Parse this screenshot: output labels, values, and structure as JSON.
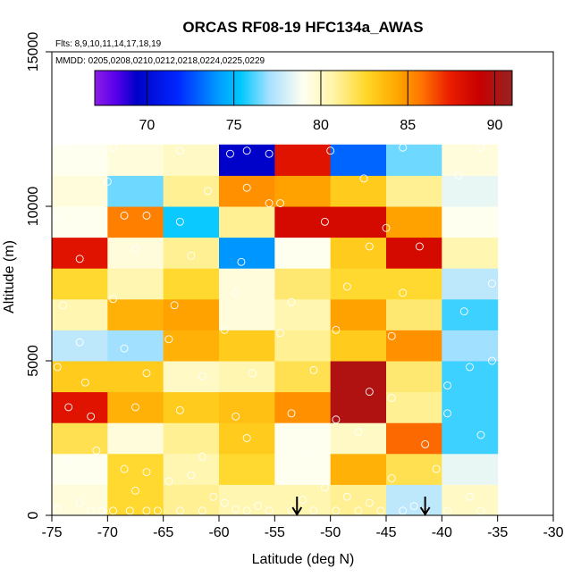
{
  "chart_data": {
    "type": "heatmap",
    "title": "ORCAS RF08-19 HFC134a_AWAS",
    "flights_note": "Flts: 8,9,10,11,14,17,18,19",
    "dates_note": "MMDD: 0205,0208,0210,0212,0218,0224,0225,0229",
    "xlabel": "Latitude (deg N)",
    "ylabel": "Altitude (m)",
    "xlim": [
      -75,
      -30
    ],
    "ylim": [
      0,
      15000
    ],
    "x_ticks": [
      -75,
      -70,
      -65,
      -60,
      -55,
      -50,
      -45,
      -40,
      -35,
      -30
    ],
    "x_tick_labels": [
      "-75",
      "-70",
      "-65",
      "-60",
      "-55",
      "-50",
      "-45",
      "-40",
      "-35",
      "-30"
    ],
    "y_ticks": [
      0,
      5000,
      10000,
      15000
    ],
    "y_tick_labels": [
      "0",
      "5000",
      "10000",
      "15000"
    ],
    "colorbar": {
      "range": [
        67,
        91
      ],
      "ticks": [
        70,
        75,
        80,
        85,
        90
      ],
      "tick_labels": [
        "70",
        "75",
        "80",
        "85",
        "90"
      ]
    },
    "lat_bins": [
      -75,
      -70,
      -65,
      -60,
      -55,
      -50,
      -45,
      -40,
      -35
    ],
    "alt_bins": [
      0,
      1000,
      2000,
      3000,
      4000,
      5000,
      6000,
      7000,
      8000,
      9000,
      10000,
      11000,
      12000
    ],
    "grid_values": [
      [
        79.5,
        82.5,
        81.0,
        80.5,
        80.5,
        81.0,
        77.5,
        80.0
      ],
      [
        79.0,
        82.5,
        80.5,
        82.5,
        79.0,
        84.0,
        82.0,
        78.5
      ],
      [
        82.0,
        79.5,
        81.0,
        83.0,
        79.0,
        80.0,
        86.0,
        76.0
      ],
      [
        88.0,
        84.0,
        83.0,
        83.5,
        85.0,
        90.0,
        81.0,
        76.0
      ],
      [
        83.0,
        83.0,
        80.0,
        80.5,
        82.0,
        90.0,
        81.5,
        76.0
      ],
      [
        77.5,
        77.0,
        84.0,
        83.0,
        81.0,
        83.0,
        85.0,
        77.0
      ],
      [
        80.5,
        84.0,
        84.5,
        79.5,
        80.5,
        84.5,
        81.5,
        76.0
      ],
      [
        82.5,
        80.5,
        82.5,
        79.5,
        81.5,
        82.5,
        82.5,
        77.5
      ],
      [
        88.0,
        79.5,
        81.0,
        74.0,
        79.0,
        83.0,
        88.5,
        80.5
      ],
      [
        79.0,
        85.5,
        75.5,
        81.0,
        88.5,
        88.5,
        84.5,
        79.0
      ],
      [
        79.5,
        76.5,
        81.0,
        85.0,
        84.5,
        83.0,
        81.0,
        78.5
      ],
      [
        79.0,
        79.5,
        80.0,
        69.5,
        88.0,
        73.0,
        76.5,
        79.5
      ]
    ],
    "samples": [
      {
        "lat": -74.5,
        "alt": 200
      },
      {
        "lat": -72.5,
        "alt": 400
      },
      {
        "lat": -71.5,
        "alt": 150
      },
      {
        "lat": -70.5,
        "alt": 150
      },
      {
        "lat": -69.5,
        "alt": 150
      },
      {
        "lat": -68.0,
        "alt": 150
      },
      {
        "lat": -67.5,
        "alt": 800
      },
      {
        "lat": -66.5,
        "alt": 150
      },
      {
        "lat": -65.5,
        "alt": 150
      },
      {
        "lat": -64.5,
        "alt": 1100
      },
      {
        "lat": -63.5,
        "alt": 150
      },
      {
        "lat": -62.5,
        "alt": 1300
      },
      {
        "lat": -61.5,
        "alt": 150
      },
      {
        "lat": -60.5,
        "alt": 600
      },
      {
        "lat": -59.5,
        "alt": 400
      },
      {
        "lat": -58.5,
        "alt": 200
      },
      {
        "lat": -57.5,
        "alt": 150
      },
      {
        "lat": -56.5,
        "alt": 300
      },
      {
        "lat": -55.5,
        "alt": 150
      },
      {
        "lat": -54.5,
        "alt": 1200
      },
      {
        "lat": -53.5,
        "alt": 150
      },
      {
        "lat": -52.5,
        "alt": 500
      },
      {
        "lat": -51.5,
        "alt": 150
      },
      {
        "lat": -50.5,
        "alt": 900
      },
      {
        "lat": -49.5,
        "alt": 150
      },
      {
        "lat": -48.5,
        "alt": 600
      },
      {
        "lat": -47.5,
        "alt": 150
      },
      {
        "lat": -46.5,
        "alt": 400
      },
      {
        "lat": -45.5,
        "alt": 150
      },
      {
        "lat": -44.5,
        "alt": 1200
      },
      {
        "lat": -43.5,
        "alt": 150
      },
      {
        "lat": -42.5,
        "alt": 300
      },
      {
        "lat": -41.5,
        "alt": 150
      },
      {
        "lat": -40.5,
        "alt": 1500
      },
      {
        "lat": -39.5,
        "alt": 150
      },
      {
        "lat": -37.5,
        "alt": 600
      },
      {
        "lat": -36.5,
        "alt": 150
      },
      {
        "lat": -73.5,
        "alt": 1800
      },
      {
        "lat": -71.0,
        "alt": 2100
      },
      {
        "lat": -68.5,
        "alt": 1500
      },
      {
        "lat": -66.5,
        "alt": 1400
      },
      {
        "lat": -61.5,
        "alt": 1900
      },
      {
        "lat": -57.5,
        "alt": 2500
      },
      {
        "lat": -52.5,
        "alt": 2100
      },
      {
        "lat": -47.5,
        "alt": 2700
      },
      {
        "lat": -41.5,
        "alt": 2300
      },
      {
        "lat": -36.5,
        "alt": 2600
      },
      {
        "lat": -73.5,
        "alt": 3500
      },
      {
        "lat": -71.5,
        "alt": 3200
      },
      {
        "lat": -67.5,
        "alt": 3500
      },
      {
        "lat": -63.5,
        "alt": 3400
      },
      {
        "lat": -58.5,
        "alt": 3200
      },
      {
        "lat": -53.5,
        "alt": 3300
      },
      {
        "lat": -49.5,
        "alt": 3100
      },
      {
        "lat": -44.5,
        "alt": 3800
      },
      {
        "lat": -39.5,
        "alt": 3300
      },
      {
        "lat": -74.5,
        "alt": 4800
      },
      {
        "lat": -72.0,
        "alt": 4300
      },
      {
        "lat": -66.5,
        "alt": 4600
      },
      {
        "lat": -61.5,
        "alt": 4500
      },
      {
        "lat": -57.0,
        "alt": 4600
      },
      {
        "lat": -51.5,
        "alt": 4700
      },
      {
        "lat": -46.5,
        "alt": 4000
      },
      {
        "lat": -39.5,
        "alt": 4200
      },
      {
        "lat": -37.5,
        "alt": 4800
      },
      {
        "lat": -35.5,
        "alt": 5000
      },
      {
        "lat": -72.5,
        "alt": 5600
      },
      {
        "lat": -68.5,
        "alt": 5400
      },
      {
        "lat": -64.5,
        "alt": 5700
      },
      {
        "lat": -59.5,
        "alt": 6000
      },
      {
        "lat": -54.5,
        "alt": 5900
      },
      {
        "lat": -49.5,
        "alt": 6000
      },
      {
        "lat": -44.5,
        "alt": 5800
      },
      {
        "lat": -38.0,
        "alt": 6600
      },
      {
        "lat": -74.0,
        "alt": 6800
      },
      {
        "lat": -69.5,
        "alt": 7000
      },
      {
        "lat": -64.0,
        "alt": 6800
      },
      {
        "lat": -58.5,
        "alt": 7200
      },
      {
        "lat": -53.5,
        "alt": 6900
      },
      {
        "lat": -48.5,
        "alt": 7400
      },
      {
        "lat": -43.5,
        "alt": 7200
      },
      {
        "lat": -35.5,
        "alt": 7500
      },
      {
        "lat": -72.5,
        "alt": 8300
      },
      {
        "lat": -67.5,
        "alt": 8600
      },
      {
        "lat": -62.5,
        "alt": 8400
      },
      {
        "lat": -58.0,
        "alt": 8200
      },
      {
        "lat": -52.5,
        "alt": 8600
      },
      {
        "lat": -46.5,
        "alt": 8700
      },
      {
        "lat": -42.0,
        "alt": 8700
      },
      {
        "lat": -74.5,
        "alt": 9700
      },
      {
        "lat": -68.5,
        "alt": 9700
      },
      {
        "lat": -66.5,
        "alt": 9700
      },
      {
        "lat": -63.5,
        "alt": 9500
      },
      {
        "lat": -55.5,
        "alt": 10100
      },
      {
        "lat": -54.5,
        "alt": 10100
      },
      {
        "lat": -50.5,
        "alt": 9500
      },
      {
        "lat": -45.0,
        "alt": 9300
      },
      {
        "lat": -37.5,
        "alt": 9300
      },
      {
        "lat": -70.0,
        "alt": 10800
      },
      {
        "lat": -61.0,
        "alt": 10500
      },
      {
        "lat": -57.5,
        "alt": 10600
      },
      {
        "lat": -47.0,
        "alt": 10900
      },
      {
        "lat": -38.5,
        "alt": 11000
      },
      {
        "lat": -74.0,
        "alt": 11900
      },
      {
        "lat": -69.5,
        "alt": 11900
      },
      {
        "lat": -63.5,
        "alt": 11800
      },
      {
        "lat": -59.0,
        "alt": 11700
      },
      {
        "lat": -57.5,
        "alt": 11800
      },
      {
        "lat": -55.5,
        "alt": 11700
      },
      {
        "lat": -50.0,
        "alt": 11800
      },
      {
        "lat": -43.5,
        "alt": 11900
      },
      {
        "lat": -36.5,
        "alt": 11900
      }
    ],
    "arrow_markers_lat": [
      -53,
      -41.5
    ]
  }
}
